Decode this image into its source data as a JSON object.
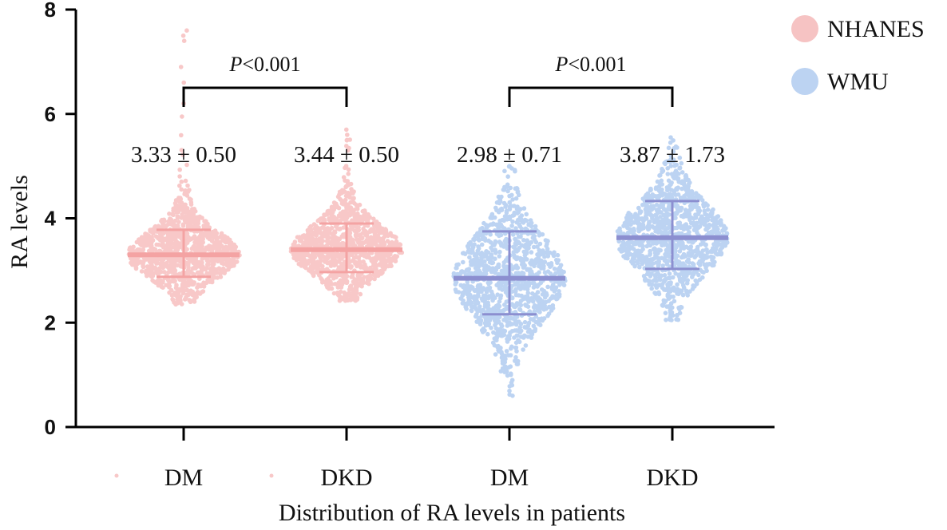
{
  "chart_data": {
    "type": "scatter",
    "title": "",
    "xlabel": "Distribution of RA levels in patients",
    "ylabel": "RA levels",
    "ylim": [
      0,
      8
    ],
    "yticks": [
      "0",
      "2",
      "4",
      "6",
      "8"
    ],
    "legend": {
      "placement": "top-right",
      "entries": [
        {
          "name": "NHANES",
          "color": "#f6c3c3"
        },
        {
          "name": "WMU",
          "color": "#bcd3f2"
        }
      ]
    },
    "groups": [
      {
        "label": "DM",
        "dataset": "NHANES",
        "stat_text": "3.33 ± 0.50",
        "median": 3.3,
        "error_low": 2.88,
        "error_high": 3.78,
        "min": 2.35,
        "max": 7.6,
        "point_color": "#f8c8c8",
        "line_color": "#f4a3a3"
      },
      {
        "label": "DKD",
        "dataset": "NHANES",
        "stat_text": "3.44 ± 0.50",
        "median": 3.4,
        "error_low": 2.97,
        "error_high": 3.9,
        "min": 2.42,
        "max": 5.7,
        "point_color": "#f8c8c8",
        "line_color": "#f4a3a3"
      },
      {
        "label": "DM",
        "dataset": "WMU",
        "stat_text": "2.98 ± 0.71",
        "median": 2.85,
        "error_low": 2.16,
        "error_high": 3.75,
        "min": 0.6,
        "max": 5.0,
        "point_color": "#bcd3f2",
        "line_color": "#8c8fd0"
      },
      {
        "label": "DKD",
        "dataset": "WMU",
        "stat_text": "3.87 ± 1.73",
        "median": 3.63,
        "error_low": 3.03,
        "error_high": 4.33,
        "min": 2.05,
        "max": 5.55,
        "point_color": "#bcd3f2",
        "line_color": "#8c8fd0"
      }
    ],
    "comparisons": [
      {
        "groups": [
          0,
          1
        ],
        "p_prefix": "P",
        "p_value": "<0.001"
      },
      {
        "groups": [
          2,
          3
        ],
        "p_prefix": "P",
        "p_value": "<0.001"
      }
    ]
  }
}
